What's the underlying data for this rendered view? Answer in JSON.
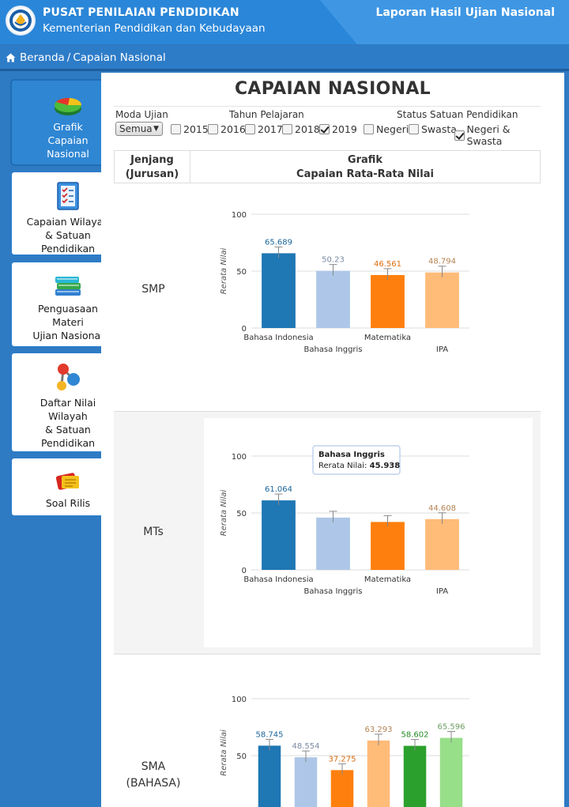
{
  "header": {
    "title": "PUSAT PENILAIAN PENDIDIKAN",
    "subtitle": "Kementerian Pendidikan dan Kebudayaan",
    "report_link": "Laporan Hasil Ujian Nasional"
  },
  "breadcrumb": {
    "home": "Beranda",
    "separator": "/",
    "current": "Capaian Nasional"
  },
  "sidebar": {
    "items": [
      {
        "label": "Grafik\nCapaian\nNasional",
        "icon": "pie-chart-icon",
        "active": true
      },
      {
        "label": "Capaian Wilayah\n& Satuan\nPendidikan",
        "icon": "checklist-icon",
        "active": false
      },
      {
        "label": "Penguasaan\nMateri\nUjian Nasional",
        "icon": "books-icon",
        "active": false
      },
      {
        "label": "Daftar Nilai\nWilayah\n& Satuan\nPendidikan",
        "icon": "molecule-icon",
        "active": false
      },
      {
        "label": "Soal Rilis",
        "icon": "documents-icon",
        "active": false
      }
    ]
  },
  "page": {
    "title": "CAPAIAN NASIONAL"
  },
  "filters": {
    "moda_label": "Moda Ujian",
    "moda_value": "Semua",
    "tahun_label": "Tahun Pelajaran",
    "years": [
      {
        "label": "2015",
        "checked": false
      },
      {
        "label": "2016",
        "checked": false
      },
      {
        "label": "2017",
        "checked": false
      },
      {
        "label": "2018",
        "checked": false
      },
      {
        "label": "2019",
        "checked": true
      }
    ],
    "status_label": "Status Satuan Pendidikan",
    "status": [
      {
        "label": "Negeri",
        "checked": false
      },
      {
        "label": "Swasta",
        "checked": false
      },
      {
        "label": "Negeri & Swasta",
        "checked": true
      }
    ]
  },
  "table": {
    "col1": "Jenjang\n(Jurusan)",
    "col2": "Grafik\nCapaian Rata-Rata Nilai"
  },
  "rows": [
    {
      "label": "SMP"
    },
    {
      "label": "MTs"
    },
    {
      "label": "SMA\n(BAHASA)"
    }
  ],
  "colors": {
    "dark_blue": "#1f77b4",
    "light_blue": "#aec7e8",
    "orange": "#ff7f0e",
    "light_orange": "#ffbb78",
    "green": "#2ca02c",
    "light_green": "#98df8a"
  },
  "chart_data": [
    {
      "type": "bar",
      "title": "SMP",
      "ylabel": "Rerata Nilai",
      "yticks": [
        "0",
        "50",
        "100"
      ],
      "ylim": [
        0,
        100
      ],
      "categories": [
        "Bahasa Indonesia",
        "Bahasa Inggris",
        "Matematika",
        "IPA"
      ],
      "values": [
        65.689,
        50.23,
        46.561,
        48.794
      ],
      "value_labels": [
        "65.689",
        "50.23",
        "46.561",
        "48.794"
      ],
      "colors": [
        "#1f77b4",
        "#aec7e8",
        "#ff7f0e",
        "#ffbb78"
      ],
      "error_bars": true
    },
    {
      "type": "bar",
      "title": "MTs",
      "ylabel": "Rerata Nilai",
      "yticks": [
        "0",
        "50",
        "100"
      ],
      "ylim": [
        0,
        100
      ],
      "categories": [
        "Bahasa Indonesia",
        "Bahasa Inggris",
        "Matematika",
        "IPA"
      ],
      "values": [
        61.064,
        45.938,
        42.1,
        44.608
      ],
      "value_labels": [
        "61.064",
        "",
        "",
        "44.608"
      ],
      "colors": [
        "#1f77b4",
        "#aec7e8",
        "#ff7f0e",
        "#ffbb78"
      ],
      "error_bars": true,
      "tooltip": {
        "title": "Bahasa Inggris",
        "label": "Rerata Nilai:",
        "value": "45.938"
      }
    },
    {
      "type": "bar",
      "title": "SMA (BAHASA)",
      "ylabel": "Rerata Nilai",
      "yticks": [
        "50",
        "100"
      ],
      "ylim": [
        0,
        100
      ],
      "categories": [
        "",
        "",
        "",
        "",
        "",
        ""
      ],
      "values": [
        58.745,
        48.554,
        37.275,
        63.293,
        58.602,
        65.596
      ],
      "value_labels": [
        "58.745",
        "48.554",
        "37.275",
        "63.293",
        "58.602",
        "65.596"
      ],
      "colors": [
        "#1f77b4",
        "#aec7e8",
        "#ff7f0e",
        "#ffbb78",
        "#2ca02c",
        "#98df8a"
      ],
      "error_bars": true
    }
  ]
}
